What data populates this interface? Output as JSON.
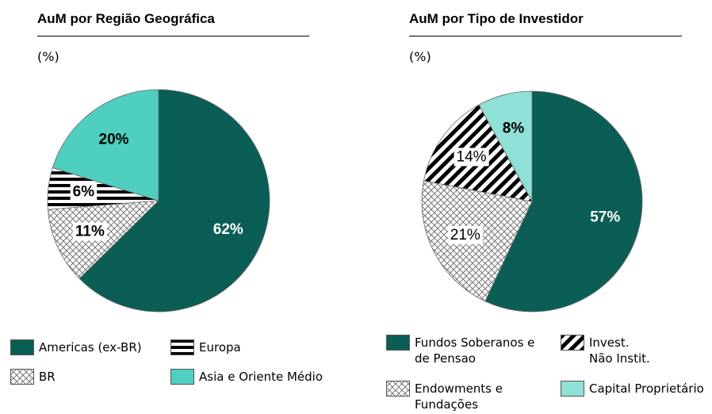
{
  "chart_data": [
    {
      "type": "pie",
      "title": "AuM por Região Geográfica",
      "subtitle": "(%)",
      "categories": [
        "Americas (ex-BR)",
        "BR",
        "Europa",
        "Asia e Oriente Médio"
      ],
      "values": [
        62,
        11,
        6,
        20
      ],
      "value_labels": [
        "62%",
        "11%",
        "6%",
        "20%"
      ],
      "colors": [
        "#0b5e55",
        "#ffffff",
        "#ffffff",
        "#4ecfc0"
      ],
      "hatches": [
        null,
        "cross",
        "horizontal",
        null
      ]
    },
    {
      "type": "pie",
      "title": "AuM por Tipo de Investidor",
      "subtitle": "(%)",
      "categories": [
        "Fundos Soberanos e\nde Pensao",
        "Endowments e\nFundações",
        "Invest.\nNão Instit.",
        "Capital Proprietário"
      ],
      "values": [
        57,
        21,
        14,
        8
      ],
      "value_labels": [
        "57%",
        "21%",
        "14%",
        "8%"
      ],
      "colors": [
        "#0b5e55",
        "#ffffff",
        "#ffffff",
        "#8fe0d6"
      ],
      "hatches": [
        null,
        "cross",
        "diagonal",
        null
      ]
    }
  ]
}
